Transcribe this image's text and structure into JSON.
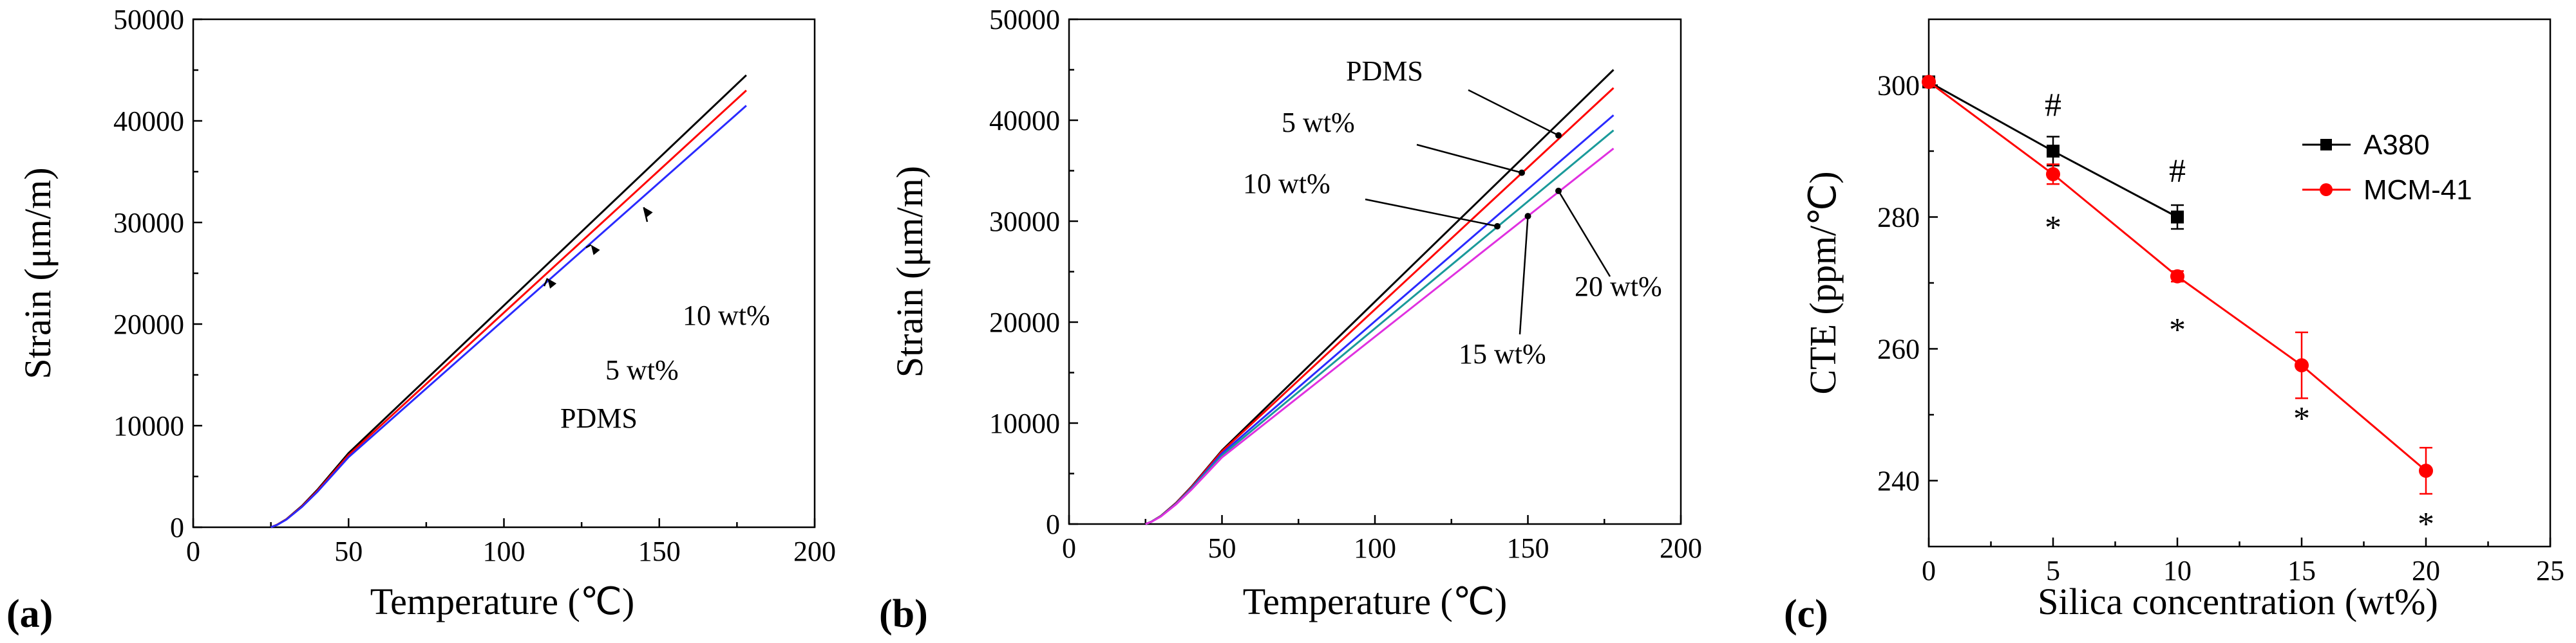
{
  "colors": {
    "black": "#000000",
    "red": "#ff0000",
    "blue": "#2a2aff",
    "teal": "#1a9a9a",
    "magenta": "#e030e0"
  },
  "chart_data": [
    {
      "panel": "(a)",
      "type": "line",
      "xlabel": "Temperature (℃)",
      "ylabel": "Strain (μm/m)",
      "xlim": [
        0,
        200
      ],
      "ylim": [
        0,
        50000
      ],
      "xticks": [
        "0",
        "50",
        "100",
        "150",
        "200"
      ],
      "yticks": [
        "0",
        "10000",
        "20000",
        "30000",
        "40000",
        "50000"
      ],
      "series": [
        {
          "name": "PDMS",
          "color": "#000000",
          "x": [
            25,
            27,
            30,
            35,
            40,
            50,
            178
          ],
          "y": [
            0,
            250,
            800,
            2100,
            3700,
            7300,
            44500
          ]
        },
        {
          "name": "5 wt%",
          "color": "#ff0000",
          "x": [
            25,
            27,
            30,
            35,
            40,
            50,
            178
          ],
          "y": [
            0,
            240,
            780,
            2050,
            3600,
            7100,
            43000
          ]
        },
        {
          "name": "10 wt%",
          "color": "#2a2aff",
          "x": [
            25,
            27,
            30,
            35,
            40,
            50,
            178
          ],
          "y": [
            0,
            230,
            760,
            2000,
            3500,
            6900,
            41500
          ]
        }
      ],
      "annotations": [
        {
          "text": "10 wt%",
          "target_x": 145,
          "target_y": 31500
        },
        {
          "text": "5 wt%",
          "target_x": 128,
          "target_y": 27800
        },
        {
          "text": "PDMS",
          "target_x": 114,
          "target_y": 24500
        }
      ]
    },
    {
      "panel": "(b)",
      "type": "line",
      "xlabel": "Temperature (℃)",
      "ylabel": "Strain (μm/m)",
      "xlim": [
        0,
        200
      ],
      "ylim": [
        0,
        50000
      ],
      "xticks": [
        "0",
        "50",
        "100",
        "150",
        "200"
      ],
      "yticks": [
        "0",
        "10000",
        "20000",
        "30000",
        "40000",
        "50000"
      ],
      "series": [
        {
          "name": "PDMS",
          "color": "#000000",
          "x": [
            25,
            27,
            30,
            35,
            40,
            50,
            178
          ],
          "y": [
            0,
            250,
            800,
            2100,
            3700,
            7300,
            45000
          ]
        },
        {
          "name": "5 wt%",
          "color": "#ff0000",
          "x": [
            25,
            27,
            30,
            35,
            40,
            50,
            178
          ],
          "y": [
            0,
            245,
            790,
            2070,
            3650,
            7200,
            43200
          ]
        },
        {
          "name": "10 wt%",
          "color": "#2a2aff",
          "x": [
            25,
            27,
            30,
            35,
            40,
            50,
            178
          ],
          "y": [
            0,
            240,
            770,
            2020,
            3560,
            7000,
            40500
          ]
        },
        {
          "name": "15 wt%",
          "color": "#1a9a9a",
          "x": [
            25,
            27,
            30,
            35,
            40,
            50,
            178
          ],
          "y": [
            0,
            235,
            760,
            1990,
            3500,
            6800,
            39000
          ]
        },
        {
          "name": "20 wt%",
          "color": "#e030e0",
          "x": [
            25,
            27,
            30,
            35,
            40,
            50,
            178
          ],
          "y": [
            0,
            230,
            740,
            1950,
            3400,
            6600,
            37200
          ]
        }
      ],
      "annotations": [
        {
          "text": "PDMS",
          "target_x": 160,
          "target_y": 38500
        },
        {
          "text": "5 wt%",
          "target_x": 148,
          "target_y": 34800
        },
        {
          "text": "10 wt%",
          "target_x": 140,
          "target_y": 29500
        },
        {
          "text": "15 wt%",
          "target_x": 150,
          "target_y": 30500
        },
        {
          "text": "20 wt%",
          "target_x": 160,
          "target_y": 33000
        }
      ]
    },
    {
      "panel": "(c)",
      "type": "line",
      "xlabel": "Silica concentration (wt%)",
      "ylabel": "CTE (ppm/℃)",
      "xlim": [
        0,
        25
      ],
      "ylim": [
        230,
        310
      ],
      "xticks": [
        "0",
        "5",
        "10",
        "15",
        "20",
        "25"
      ],
      "yticks": [
        "240",
        "260",
        "280",
        "300"
      ],
      "series": [
        {
          "name": "A380",
          "color": "#000000",
          "marker": "square",
          "x": [
            0,
            5,
            10
          ],
          "y": [
            300.5,
            290,
            280
          ],
          "err": [
            0,
            2.2,
            1.8
          ]
        },
        {
          "name": "MCM-41",
          "color": "#ff0000",
          "marker": "circle",
          "x": [
            0,
            5,
            10,
            15,
            20
          ],
          "y": [
            300.5,
            286.5,
            271,
            257.5,
            241.5
          ],
          "err": [
            0,
            1.5,
            0.8,
            5,
            3.5
          ]
        }
      ],
      "significance": [
        {
          "symbol": "#",
          "x": 5,
          "y": 290
        },
        {
          "symbol": "#",
          "x": 10,
          "y": 280
        },
        {
          "symbol": "*",
          "x": 5,
          "y": 286.5
        },
        {
          "symbol": "*",
          "x": 10,
          "y": 271
        },
        {
          "symbol": "*",
          "x": 15,
          "y": 257.5
        },
        {
          "symbol": "*",
          "x": 20,
          "y": 241.5
        }
      ]
    }
  ]
}
